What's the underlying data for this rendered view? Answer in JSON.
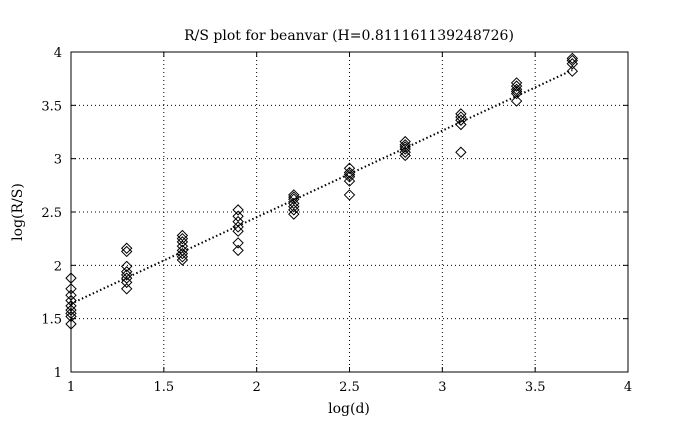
{
  "chart_data": {
    "type": "scatter",
    "title": "R/S plot for beanvar (H=0.811161139248726)",
    "xlabel": "log(d)",
    "ylabel": "log(R/S)",
    "xlim": [
      1,
      4
    ],
    "ylim": [
      1,
      4
    ],
    "xticks": [
      1,
      1.5,
      2,
      2.5,
      3,
      3.5,
      4
    ],
    "yticks": [
      1,
      1.5,
      2,
      2.5,
      3,
      3.5,
      4
    ],
    "xtick_labels": [
      "1",
      "1.5",
      "2",
      "2.5",
      "3",
      "3.5",
      "4"
    ],
    "ytick_labels": [
      "1",
      "1.5",
      "2",
      "2.5",
      "3",
      "3.5",
      "4"
    ],
    "grid": "dotted",
    "marker": "diamond",
    "color": "#000000",
    "points": [
      [
        1.0,
        1.88
      ],
      [
        1.0,
        1.78
      ],
      [
        1.0,
        1.72
      ],
      [
        1.0,
        1.67
      ],
      [
        1.0,
        1.62
      ],
      [
        1.0,
        1.58
      ],
      [
        1.0,
        1.55
      ],
      [
        1.0,
        1.52
      ],
      [
        1.0,
        1.45
      ],
      [
        1.3,
        2.16
      ],
      [
        1.3,
        2.13
      ],
      [
        1.3,
        1.99
      ],
      [
        1.3,
        1.94
      ],
      [
        1.3,
        1.91
      ],
      [
        1.3,
        1.88
      ],
      [
        1.3,
        1.84
      ],
      [
        1.3,
        1.78
      ],
      [
        1.6,
        2.28
      ],
      [
        1.6,
        2.25
      ],
      [
        1.6,
        2.22
      ],
      [
        1.6,
        2.18
      ],
      [
        1.6,
        2.14
      ],
      [
        1.6,
        2.11
      ],
      [
        1.6,
        2.08
      ],
      [
        1.6,
        2.05
      ],
      [
        1.9,
        2.52
      ],
      [
        1.9,
        2.46
      ],
      [
        1.9,
        2.41
      ],
      [
        1.9,
        2.36
      ],
      [
        1.9,
        2.32
      ],
      [
        1.9,
        2.21
      ],
      [
        1.9,
        2.14
      ],
      [
        2.2,
        2.66
      ],
      [
        2.2,
        2.64
      ],
      [
        2.2,
        2.62
      ],
      [
        2.2,
        2.58
      ],
      [
        2.2,
        2.55
      ],
      [
        2.2,
        2.52
      ],
      [
        2.2,
        2.48
      ],
      [
        2.5,
        2.91
      ],
      [
        2.5,
        2.87
      ],
      [
        2.5,
        2.85
      ],
      [
        2.5,
        2.83
      ],
      [
        2.5,
        2.79
      ],
      [
        2.5,
        2.66
      ],
      [
        2.8,
        3.16
      ],
      [
        2.8,
        3.13
      ],
      [
        2.8,
        3.11
      ],
      [
        2.8,
        3.09
      ],
      [
        2.8,
        3.06
      ],
      [
        2.8,
        3.03
      ],
      [
        3.1,
        3.42
      ],
      [
        3.1,
        3.39
      ],
      [
        3.1,
        3.36
      ],
      [
        3.1,
        3.32
      ],
      [
        3.1,
        3.06
      ],
      [
        3.4,
        3.71
      ],
      [
        3.4,
        3.68
      ],
      [
        3.4,
        3.65
      ],
      [
        3.4,
        3.63
      ],
      [
        3.4,
        3.61
      ],
      [
        3.4,
        3.54
      ],
      [
        3.7,
        3.94
      ],
      [
        3.7,
        3.92
      ],
      [
        3.7,
        3.89
      ],
      [
        3.7,
        3.82
      ]
    ],
    "fit_line": {
      "style": "dotted",
      "x": [
        1.0,
        3.7
      ],
      "y": [
        1.64,
        3.83
      ]
    }
  }
}
